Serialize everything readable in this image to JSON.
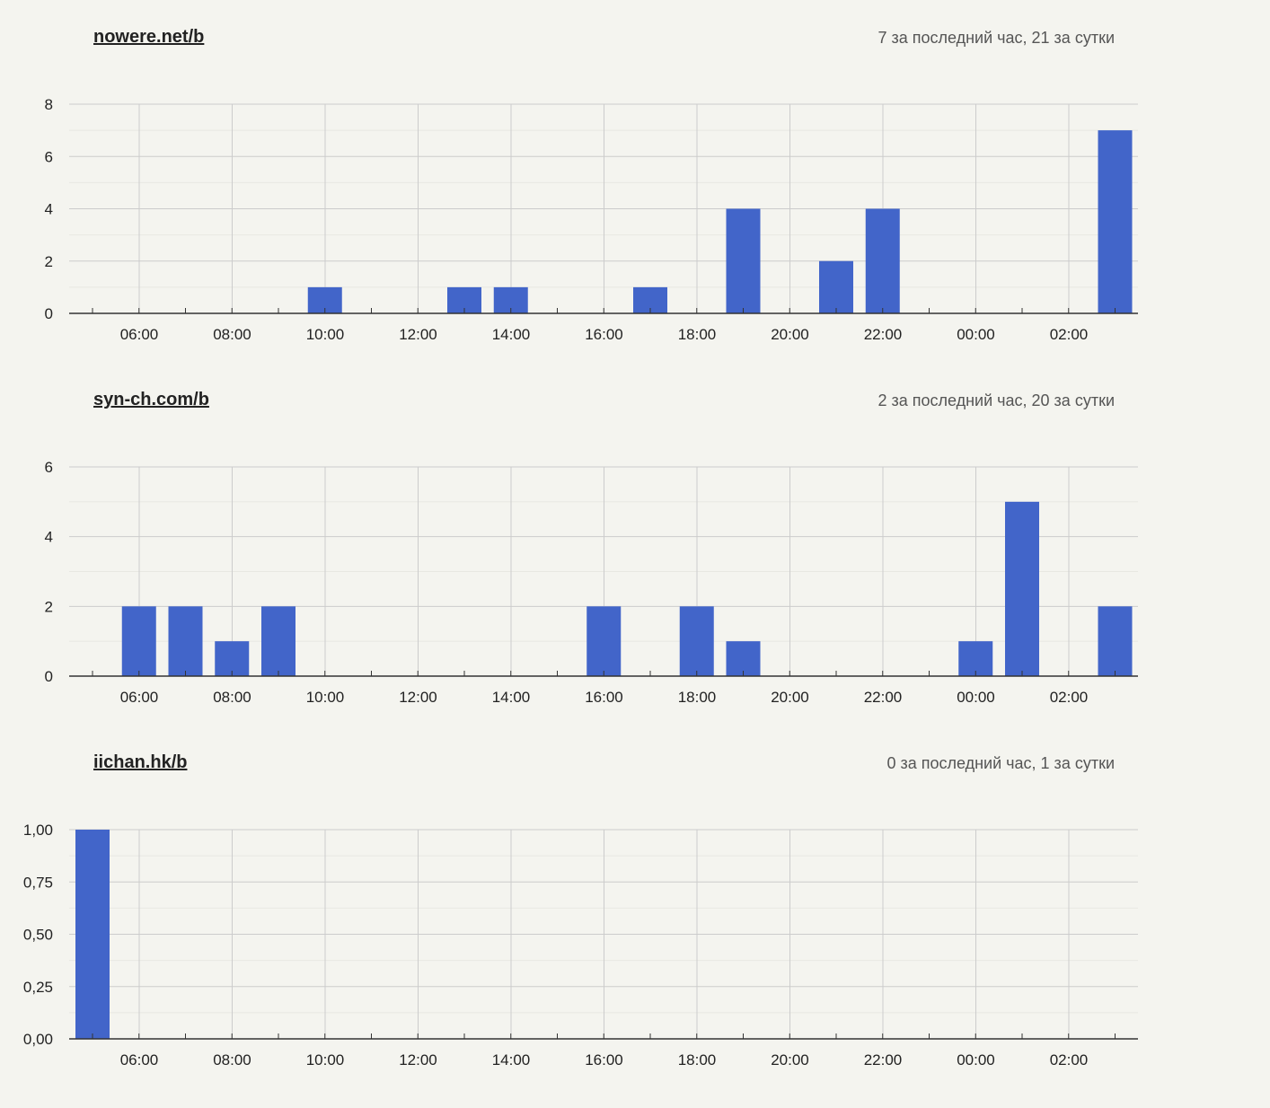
{
  "colors": {
    "bar": "#4265c9",
    "grid": "#cccccc",
    "minor_grid": "#e8e8e2",
    "axis": "#333333"
  },
  "boards": [
    {
      "link": "nowere.net/b",
      "stats": "7 за последний час, 21 за сутки"
    },
    {
      "link": "syn-ch.com/b",
      "stats": "2 за последний час, 20 за сутки"
    },
    {
      "link": "iichan.hk/b",
      "stats": "0 за последний час, 1 за сутки"
    }
  ],
  "chart_data": [
    {
      "type": "bar",
      "x_ticks": [
        "06:00",
        "08:00",
        "10:00",
        "12:00",
        "14:00",
        "16:00",
        "18:00",
        "20:00",
        "22:00",
        "00:00",
        "02:00"
      ],
      "hours": [
        "05:00",
        "06:00",
        "07:00",
        "08:00",
        "09:00",
        "10:00",
        "11:00",
        "12:00",
        "13:00",
        "14:00",
        "15:00",
        "16:00",
        "17:00",
        "18:00",
        "19:00",
        "20:00",
        "21:00",
        "22:00",
        "23:00",
        "00:00",
        "01:00",
        "02:00",
        "03:00"
      ],
      "values": [
        0,
        0,
        0,
        0,
        0,
        1,
        0,
        0,
        1,
        1,
        0,
        0,
        1,
        0,
        4,
        0,
        2,
        4,
        0,
        0,
        0,
        0,
        7
      ],
      "ylim": [
        0,
        8
      ],
      "y_ticks": [
        "0",
        "2",
        "4",
        "6",
        "8"
      ],
      "grid": true
    },
    {
      "type": "bar",
      "x_ticks": [
        "06:00",
        "08:00",
        "10:00",
        "12:00",
        "14:00",
        "16:00",
        "18:00",
        "20:00",
        "22:00",
        "00:00",
        "02:00"
      ],
      "hours": [
        "05:00",
        "06:00",
        "07:00",
        "08:00",
        "09:00",
        "10:00",
        "11:00",
        "12:00",
        "13:00",
        "14:00",
        "15:00",
        "16:00",
        "17:00",
        "18:00",
        "19:00",
        "20:00",
        "21:00",
        "22:00",
        "23:00",
        "00:00",
        "01:00",
        "02:00",
        "03:00"
      ],
      "values": [
        0,
        2,
        2,
        1,
        2,
        0,
        0,
        0,
        0,
        0,
        0,
        2,
        0,
        2,
        1,
        0,
        0,
        0,
        0,
        1,
        5,
        0,
        2
      ],
      "ylim": [
        0,
        6
      ],
      "y_ticks": [
        "0",
        "2",
        "4",
        "6"
      ],
      "grid": true
    },
    {
      "type": "bar",
      "x_ticks": [
        "06:00",
        "08:00",
        "10:00",
        "12:00",
        "14:00",
        "16:00",
        "18:00",
        "20:00",
        "22:00",
        "00:00",
        "02:00"
      ],
      "hours": [
        "05:00",
        "06:00",
        "07:00",
        "08:00",
        "09:00",
        "10:00",
        "11:00",
        "12:00",
        "13:00",
        "14:00",
        "15:00",
        "16:00",
        "17:00",
        "18:00",
        "19:00",
        "20:00",
        "21:00",
        "22:00",
        "23:00",
        "00:00",
        "01:00",
        "02:00",
        "03:00"
      ],
      "values": [
        1,
        0,
        0,
        0,
        0,
        0,
        0,
        0,
        0,
        0,
        0,
        0,
        0,
        0,
        0,
        0,
        0,
        0,
        0,
        0,
        0,
        0,
        0
      ],
      "ylim": [
        0,
        1
      ],
      "y_ticks": [
        "0,00",
        "0,25",
        "0,50",
        "0,75",
        "1,00"
      ],
      "grid": true
    }
  ]
}
